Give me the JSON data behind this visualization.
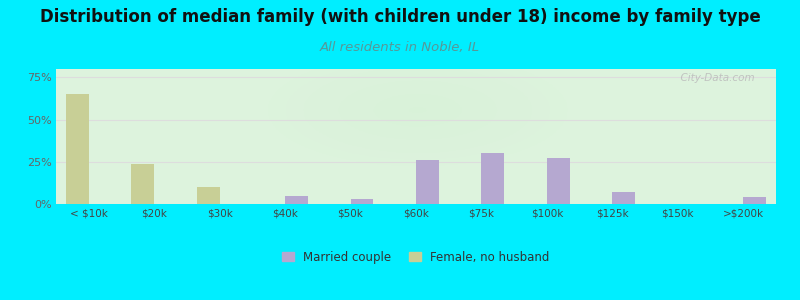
{
  "title": "Distribution of median family (with children under 18) income by family type",
  "subtitle": "All residents in Noble, IL",
  "categories": [
    "< $10k",
    "$20k",
    "$30k",
    "$40k",
    "$50k",
    "$60k",
    "$75k",
    "$100k",
    "$125k",
    "$150k",
    ">$200k"
  ],
  "married_couple": [
    0,
    0,
    0,
    5,
    3,
    26,
    30,
    27,
    7,
    0,
    4
  ],
  "female_no_husband": [
    65,
    24,
    10,
    0,
    0,
    0,
    0,
    0,
    0,
    0,
    0
  ],
  "married_color": "#b5a8d0",
  "female_color": "#c8cf96",
  "background_outer": "#00eeff",
  "title_fontsize": 12,
  "subtitle_fontsize": 9.5,
  "subtitle_color": "#559999",
  "ylabel_ticks": [
    0,
    25,
    50,
    75
  ],
  "ylim": [
    0,
    80
  ],
  "bar_width": 0.35,
  "watermark": "  City-Data.com"
}
